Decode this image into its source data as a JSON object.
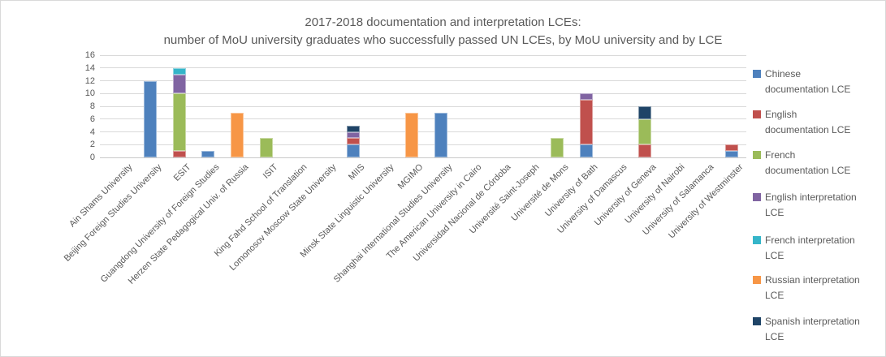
{
  "chart_data": {
    "type": "bar",
    "stacked": true,
    "title": "2017-2018 documentation and interpretation LCEs:",
    "subtitle": "number of MoU university graduates who successfully passed UN LCEs, by MoU university and by LCE",
    "ylim": [
      0,
      16
    ],
    "y_tick_step": 2,
    "grid": true,
    "legend_position": "right",
    "categories": [
      "Ain Shams University",
      "Beijing Foreign Studies University",
      "ESIT",
      "Guangdong University of Foreign Studies",
      "Herzen State Pedagogical Univ. of Russia",
      "ISIT",
      "King Fahd School of Translation",
      "Lomonosov Moscow State University",
      "MIIS",
      "Minsk State Linguistic University",
      "MGIMO",
      "Shanghai International Studies University",
      "The American University in Cairo",
      "Universidad Nacional de Córdoba",
      "Université Saint-Joseph",
      "Université de Mons",
      "University of Bath",
      "University of Damascus",
      "University of Geneva",
      "University of Nairobi",
      "University of Salamanca",
      "University of Westminster"
    ],
    "series": [
      {
        "name": "Chinese documentation LCE",
        "legend_lines": [
          "Chinese",
          "documentation LCE"
        ],
        "color": "#4E81BD",
        "values": [
          0,
          12,
          0,
          1,
          0,
          0,
          0,
          0,
          2,
          0,
          0,
          7,
          0,
          0,
          0,
          0,
          2,
          0,
          0,
          0,
          0,
          1
        ]
      },
      {
        "name": "English documentation LCE",
        "legend_lines": [
          "English",
          "documentation LCE"
        ],
        "color": "#C0504D",
        "values": [
          0,
          0,
          1,
          0,
          0,
          0,
          0,
          0,
          1,
          0,
          0,
          0,
          0,
          0,
          0,
          0,
          7,
          0,
          2,
          0,
          0,
          1
        ]
      },
      {
        "name": "French documentation LCE",
        "legend_lines": [
          "French",
          "documentation LCE"
        ],
        "color": "#9BBB59",
        "values": [
          0,
          0,
          9,
          0,
          0,
          3,
          0,
          0,
          0,
          0,
          0,
          0,
          0,
          0,
          0,
          3,
          0,
          0,
          4,
          0,
          0,
          0
        ]
      },
      {
        "name": "English interpretation LCE",
        "legend_lines": [
          "English interpretation",
          "LCE"
        ],
        "color": "#8064A2",
        "values": [
          0,
          0,
          3,
          0,
          0,
          0,
          0,
          0,
          1,
          0,
          0,
          0,
          0,
          0,
          0,
          0,
          1,
          0,
          0,
          0,
          0,
          0
        ]
      },
      {
        "name": "French interpretation LCE",
        "legend_lines": [
          "French interpretation",
          "LCE"
        ],
        "color": "#35B5C9",
        "values": [
          0,
          0,
          1,
          0,
          0,
          0,
          0,
          0,
          0,
          0,
          0,
          0,
          0,
          0,
          0,
          0,
          0,
          0,
          0,
          0,
          0,
          0
        ]
      },
      {
        "name": "Russian interpretation LCE",
        "legend_lines": [
          "Russian interpretation",
          "LCE"
        ],
        "color": "#F79646",
        "values": [
          0,
          0,
          0,
          0,
          7,
          0,
          0,
          0,
          0,
          0,
          7,
          0,
          0,
          0,
          0,
          0,
          0,
          0,
          0,
          0,
          0,
          0
        ]
      },
      {
        "name": "Spanish interpretation LCE",
        "legend_lines": [
          "Spanish interpretation",
          "LCE"
        ],
        "color": "#1F4467",
        "values": [
          0,
          0,
          0,
          0,
          0,
          0,
          0,
          0,
          1,
          0,
          0,
          0,
          0,
          0,
          0,
          0,
          0,
          0,
          2,
          0,
          0,
          0
        ]
      }
    ]
  }
}
